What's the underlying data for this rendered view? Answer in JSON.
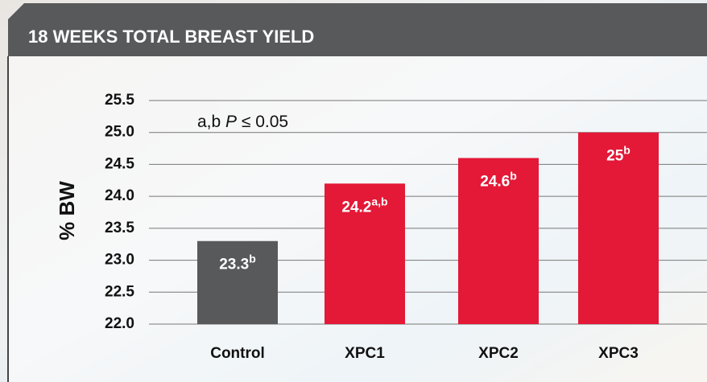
{
  "chart_data": {
    "type": "bar",
    "title": "18 WEEKS TOTAL BREAST YIELD",
    "y_label": "% BW",
    "annotation": {
      "prefix": "a,b ",
      "italic": "P",
      "suffix": " ≤ 0.05"
    },
    "categories": [
      "Control",
      "XPC1",
      "XPC2",
      "XPC3"
    ],
    "values": [
      23.3,
      24.2,
      24.6,
      25
    ],
    "value_labels": [
      "23.3",
      "24.2",
      "24.6",
      "25"
    ],
    "superscripts": [
      "b",
      "a,b",
      "b",
      "b"
    ],
    "colors": [
      "#58595b",
      "#e31937",
      "#e31937",
      "#e31937"
    ],
    "ylim": [
      22,
      25.5
    ],
    "yticks": [
      {
        "value": 22,
        "label": "22.0"
      },
      22.5,
      {
        "value": 23,
        "label": "23.0"
      },
      23.5,
      {
        "value": 24,
        "label": "24.0"
      },
      24.5,
      {
        "value": 25,
        "label": "25.0"
      },
      25.5
    ],
    "grid": true
  }
}
